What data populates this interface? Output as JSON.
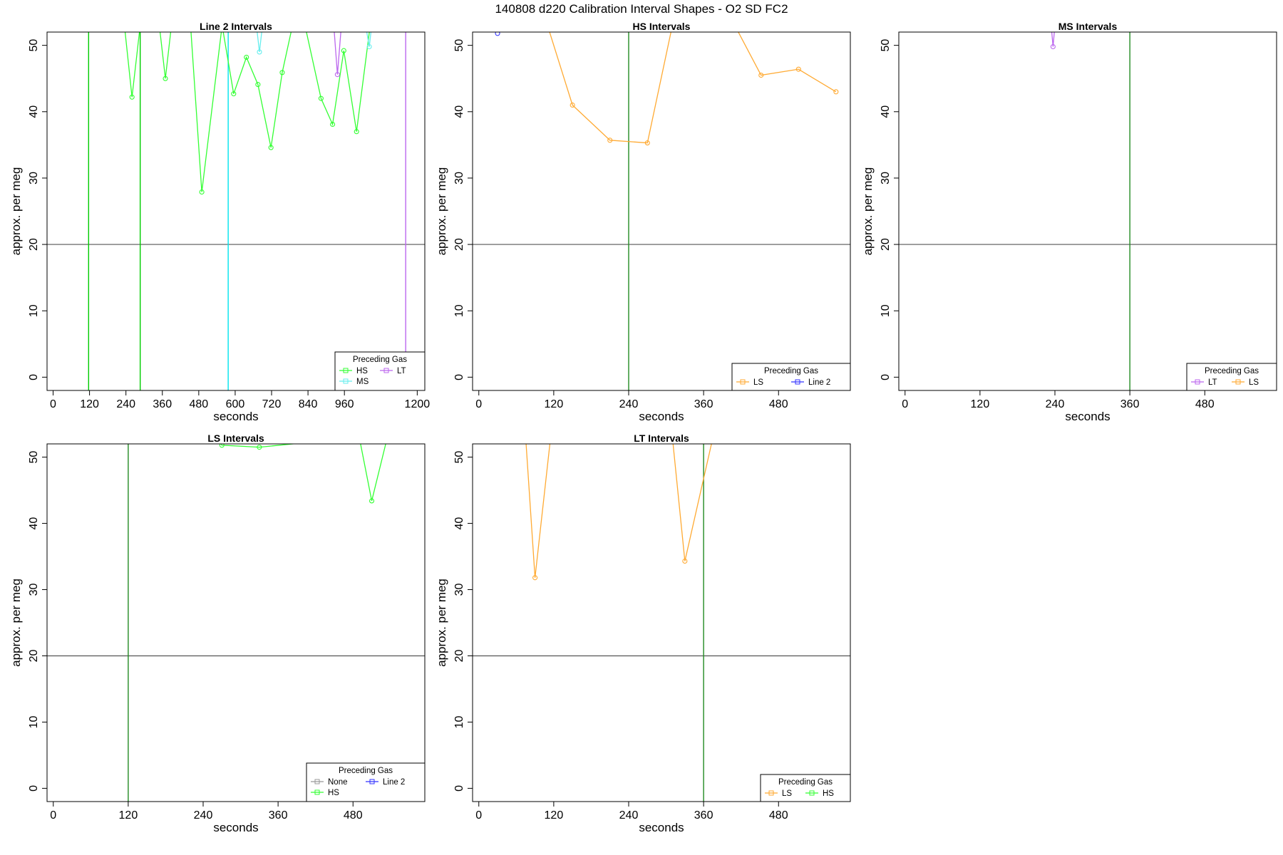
{
  "figure_title": "140808   d220   Calibration Interval Shapes - O2 SD FC2",
  "chart_data": [
    {
      "type": "line",
      "title": "Line 2 Intervals",
      "xlabel": "seconds",
      "ylabel": "approx. per meg",
      "xlim": [
        -20,
        1225
      ],
      "ylim": [
        -2,
        52
      ],
      "xticks": [
        0,
        120,
        240,
        360,
        480,
        600,
        720,
        840,
        960,
        1200
      ],
      "yticks": [
        0,
        10,
        20,
        30,
        40,
        50
      ],
      "hlines": [
        {
          "y": 20,
          "color": "#555555"
        }
      ],
      "vlines": [
        {
          "x": 117,
          "color": "#00cc00"
        },
        {
          "x": 287,
          "color": "#00cc00"
        },
        {
          "x": 577,
          "color": "#00e5ee"
        },
        {
          "x": 1162,
          "color": "#bb66ee"
        }
      ],
      "legend": {
        "title": "Preceding Gas",
        "position": "bottom-right",
        "cols": 2,
        "entries": [
          {
            "label": "HS",
            "color": "#33ff33"
          },
          {
            "label": "LT",
            "color": "#bb66ee"
          },
          {
            "label": "MS",
            "color": "#66eeee"
          }
        ]
      },
      "series": [
        {
          "name": "HS",
          "color": "#33ff33",
          "x": [
            235,
            260,
            287,
            350,
            370,
            390,
            410,
            453,
            490,
            557,
            595,
            637,
            675,
            718,
            755,
            789,
            830,
            883,
            921,
            958,
            1000,
            1045,
            1075
          ],
          "y": [
            53,
            42.2,
            53,
            53,
            45.0,
            53,
            53,
            53,
            27.9,
            53,
            42.7,
            48.2,
            44.1,
            34.6,
            45.9,
            53,
            53,
            42.0,
            38.1,
            49.2,
            37.0,
            53,
            53
          ]
        },
        {
          "name": "MS",
          "color": "#66eeee",
          "x": [
            670,
            680,
            690,
            1030,
            1042,
            1050
          ],
          "y": [
            53,
            49.0,
            53,
            53,
            49.8,
            53
          ]
        },
        {
          "name": "LT",
          "color": "#bb66ee",
          "x": [
            925,
            937,
            950
          ],
          "y": [
            53,
            45.6,
            53
          ]
        }
      ]
    },
    {
      "type": "line",
      "title": "HS Intervals",
      "xlabel": "seconds",
      "ylabel": "approx. per meg",
      "xlim": [
        -10,
        595
      ],
      "ylim": [
        -2,
        52
      ],
      "xticks": [
        0,
        120,
        240,
        360,
        480
      ],
      "yticks": [
        0,
        10,
        20,
        30,
        40,
        50
      ],
      "hlines": [
        {
          "y": 20,
          "color": "#555555"
        }
      ],
      "vlines": [
        {
          "x": 240,
          "color": "#228b22"
        }
      ],
      "legend": {
        "title": "Preceding Gas",
        "position": "bottom-right",
        "cols": 2,
        "entries": [
          {
            "label": "LS",
            "color": "#ffaa33"
          },
          {
            "label": "Line 2",
            "color": "#3333ff"
          }
        ]
      },
      "series": [
        {
          "name": "LS",
          "color": "#ffaa33",
          "x": [
            110,
            150,
            210,
            270,
            310,
            410,
            452,
            512,
            572
          ],
          "y": [
            53,
            41.0,
            35.7,
            35.3,
            53,
            53,
            45.5,
            46.4,
            43.0
          ]
        },
        {
          "name": "Line 2",
          "color": "#3333ff",
          "x": [
            30
          ],
          "y": [
            51.8
          ]
        }
      ]
    },
    {
      "type": "line",
      "title": "MS Intervals",
      "xlabel": "seconds",
      "ylabel": "approx. per meg",
      "xlim": [
        -10,
        595
      ],
      "ylim": [
        -2,
        52
      ],
      "xticks": [
        0,
        120,
        240,
        360,
        480
      ],
      "yticks": [
        0,
        10,
        20,
        30,
        40,
        50
      ],
      "hlines": [
        {
          "y": 20,
          "color": "#555555"
        }
      ],
      "vlines": [
        {
          "x": 360,
          "color": "#228b22"
        }
      ],
      "legend": {
        "title": "Preceding Gas",
        "position": "bottom-right",
        "cols": 2,
        "entries": [
          {
            "label": "LT",
            "color": "#bb66ee"
          },
          {
            "label": "LS",
            "color": "#ffaa33"
          }
        ]
      },
      "series": [
        {
          "name": "LT",
          "color": "#bb66ee",
          "x": [
            234,
            237,
            240
          ],
          "y": [
            53,
            49.8,
            53
          ]
        }
      ]
    },
    {
      "type": "line",
      "title": "LS Intervals",
      "xlabel": "seconds",
      "ylabel": "approx. per meg",
      "xlim": [
        -10,
        595
      ],
      "ylim": [
        -2,
        52
      ],
      "xticks": [
        0,
        120,
        240,
        360,
        480
      ],
      "yticks": [
        0,
        10,
        20,
        30,
        40,
        50
      ],
      "hlines": [
        {
          "y": 20,
          "color": "#555555"
        }
      ],
      "vlines": [
        {
          "x": 120,
          "color": "#228b22"
        }
      ],
      "legend": {
        "title": "Preceding Gas",
        "position": "bottom-right",
        "cols": 2,
        "entries": [
          {
            "label": "None",
            "color": "#999999"
          },
          {
            "label": "Line 2",
            "color": "#3333ff"
          },
          {
            "label": "HS",
            "color": "#33ff33"
          }
        ]
      },
      "series": [
        {
          "name": "HS",
          "color": "#33ff33",
          "x": [
            260,
            270,
            330,
            490,
            510,
            535
          ],
          "y": [
            53,
            51.8,
            51.5,
            53,
            43.4,
            53
          ]
        }
      ]
    },
    {
      "type": "line",
      "title": "LT Intervals",
      "xlabel": "seconds",
      "ylabel": "approx. per meg",
      "xlim": [
        -10,
        595
      ],
      "ylim": [
        -2,
        52
      ],
      "xticks": [
        0,
        120,
        240,
        360,
        480
      ],
      "yticks": [
        0,
        10,
        20,
        30,
        40,
        50
      ],
      "hlines": [
        {
          "y": 20,
          "color": "#555555"
        }
      ],
      "vlines": [
        {
          "x": 360,
          "color": "#228b22"
        }
      ],
      "legend": {
        "title": "Preceding Gas",
        "position": "bottom-right",
        "cols": 2,
        "entries": [
          {
            "label": "LS",
            "color": "#ffaa33"
          },
          {
            "label": "HS",
            "color": "#33ff33"
          }
        ]
      },
      "series": [
        {
          "name": "LS",
          "color": "#ffaa33",
          "x": [
            75,
            90,
            115,
            310,
            330,
            375
          ],
          "y": [
            53,
            31.8,
            53,
            53,
            34.3,
            53
          ]
        }
      ]
    }
  ]
}
